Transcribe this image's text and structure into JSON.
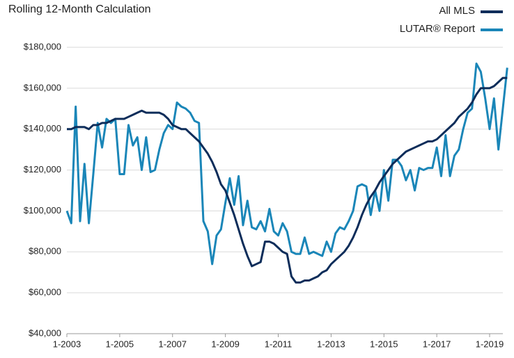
{
  "chart_data": {
    "type": "line",
    "title": "Rolling 12-Month Calculation",
    "categories": [
      "1-2003",
      null,
      null,
      null,
      null,
      null,
      null,
      null,
      null,
      null,
      null,
      null,
      "1-2005",
      null,
      null,
      null,
      null,
      null,
      null,
      null,
      null,
      null,
      null,
      null,
      "1-2007",
      null,
      null,
      null,
      null,
      null,
      null,
      null,
      null,
      null,
      null,
      null,
      "1-2009",
      null,
      null,
      null,
      null,
      null,
      null,
      null,
      null,
      null,
      null,
      null,
      "1-2011",
      null,
      null,
      null,
      null,
      null,
      null,
      null,
      null,
      null,
      null,
      null,
      "1-2013",
      null,
      null,
      null,
      null,
      null,
      null,
      null,
      null,
      null,
      null,
      null,
      "1-2015",
      null,
      null,
      null,
      null,
      null,
      null,
      null,
      null,
      null,
      null,
      null,
      "1-2017",
      null,
      null,
      null,
      null,
      null,
      null,
      null,
      null,
      null,
      null,
      null,
      "1-2019",
      null,
      null,
      null,
      null
    ],
    "series": [
      {
        "name": "All MLS",
        "color": "#0d2d5a",
        "values": [
          140000,
          140000,
          141000,
          141000,
          141000,
          140000,
          142000,
          142000,
          143000,
          143000,
          144000,
          145000,
          145000,
          145000,
          146000,
          147000,
          148000,
          149000,
          148000,
          148000,
          148000,
          148000,
          147000,
          145000,
          142000,
          141000,
          140000,
          140000,
          138000,
          136000,
          134000,
          131000,
          128000,
          124000,
          119000,
          113000,
          110000,
          104000,
          98000,
          91000,
          84000,
          78000,
          73000,
          74000,
          75000,
          85000,
          85000,
          84000,
          82000,
          80000,
          79000,
          68000,
          65000,
          65000,
          66000,
          66000,
          67000,
          68000,
          70000,
          71000,
          74000,
          76000,
          78000,
          80000,
          83000,
          87000,
          92000,
          98000,
          103000,
          107000,
          110000,
          114000,
          117000,
          120000,
          123000,
          125000,
          127000,
          129000,
          130000,
          131000,
          132000,
          133000,
          134000,
          134000,
          135000,
          137000,
          139000,
          141000,
          143000,
          146000,
          148000,
          150000,
          153000,
          157000,
          160000,
          160000,
          160000,
          161000,
          163000,
          165000,
          165000
        ]
      },
      {
        "name": "LUTAR® Report",
        "color": "#1a86b8",
        "values": [
          100000,
          94000,
          151000,
          95000,
          123000,
          94000,
          118000,
          143000,
          131000,
          145000,
          143000,
          145000,
          118000,
          118000,
          142000,
          132000,
          136000,
          120000,
          136000,
          119000,
          120000,
          130000,
          138000,
          142000,
          140000,
          153000,
          151000,
          150000,
          148000,
          144000,
          143000,
          95000,
          90000,
          74000,
          88000,
          91000,
          104000,
          116000,
          103000,
          117000,
          93000,
          105000,
          92000,
          91000,
          95000,
          90000,
          101000,
          90000,
          88000,
          94000,
          90000,
          80000,
          79000,
          79000,
          87000,
          79000,
          80000,
          79000,
          78000,
          85000,
          80000,
          89000,
          92000,
          91000,
          95000,
          100000,
          112000,
          113000,
          112000,
          98000,
          110000,
          100000,
          120000,
          105000,
          125000,
          125000,
          122000,
          115000,
          120000,
          110000,
          121000,
          120000,
          121000,
          121000,
          131000,
          117000,
          137000,
          117000,
          127000,
          130000,
          140000,
          148000,
          150000,
          172000,
          168000,
          155000,
          140000,
          155000,
          130000,
          150000,
          170000
        ]
      }
    ],
    "ylim": [
      40000,
      180000
    ],
    "yticks": [
      {
        "value": 40000,
        "label": "$40,000"
      },
      {
        "value": 60000,
        "label": "$60,000"
      },
      {
        "value": 80000,
        "label": "$80,000"
      },
      {
        "value": 100000,
        "label": "$100,000"
      },
      {
        "value": 120000,
        "label": "$120,000"
      },
      {
        "value": 140000,
        "label": "$140,000"
      },
      {
        "value": 160000,
        "label": "$160,000"
      },
      {
        "value": 180000,
        "label": "$180,000"
      }
    ],
    "grid": true,
    "legend": "top-right"
  }
}
